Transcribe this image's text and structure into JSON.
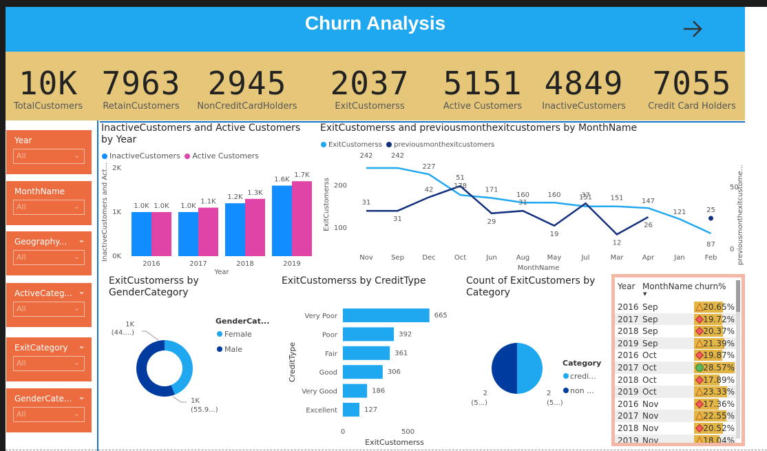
{
  "header": {
    "title": "Churn Analysis"
  },
  "kpis": [
    {
      "value": "10K",
      "label": "TotalCustomers"
    },
    {
      "value": "7963",
      "label": "RetainCustomers"
    },
    {
      "value": "2945",
      "label": "NonCreditCardHolders"
    },
    {
      "value": "2037",
      "label": "ExitCustomerss"
    },
    {
      "value": "5151",
      "label": "Active Customers"
    },
    {
      "value": "4849",
      "label": "InactiveCustomers"
    },
    {
      "value": "7055",
      "label": "Credit Card Holders"
    }
  ],
  "slicers": [
    {
      "title": "Year",
      "value": "All"
    },
    {
      "title": "MonthName",
      "value": "All"
    },
    {
      "title": "Geography...",
      "value": "All"
    },
    {
      "title": "ActiveCateg...",
      "value": "All"
    },
    {
      "title": "ExitCategory",
      "value": "All"
    },
    {
      "title": "GenderCate...",
      "value": "All"
    }
  ],
  "bar_chart": {
    "title": "InactiveCustomers and Active Customers by Year",
    "legend": [
      "InactiveCustomers",
      "Active Customers"
    ],
    "colors": [
      "#118dff",
      "#e044a7"
    ],
    "ylabel": "InactiveCustomers and Act...",
    "xlabel": "Year",
    "yticks": [
      "0K",
      "1K",
      "2K"
    ]
  },
  "line_chart": {
    "title": "ExitCustomerss and previousmonthexitcustomers by MonthName",
    "legend": [
      "ExitCustomerss",
      "previousmonthexitcustomers"
    ],
    "colors": [
      "#1fa7f0",
      "#13307f"
    ],
    "ylabel": "ExitCustomerss",
    "y2label": "previousmonthexitcustome...",
    "xlabel": "MonthName",
    "yticks": [
      "100",
      "200"
    ],
    "y2ticks": [
      "0",
      "50"
    ]
  },
  "donut_chart": {
    "title": "ExitCustomerss by GenderCategory",
    "legend_title": "GenderCat...",
    "legend": [
      "Female",
      "Male"
    ],
    "colors": [
      "#1fa7f0",
      "#003ba0"
    ],
    "label_top": "1K",
    "label_top_pct": "(44....)",
    "label_bottom": "1K",
    "label_bottom_pct": "(55.9...)"
  },
  "hbar_chart": {
    "title": "ExitCustomerss by CreditType",
    "ylabel": "CreditType",
    "xlabel": "ExitCustomerss",
    "xticks": [
      "0",
      "500"
    ],
    "color": "#1fa7f0"
  },
  "pie_chart": {
    "title": "Count of ExitCustomers by Category",
    "legend_title": "Category",
    "legend": [
      "credi...",
      "non ..."
    ],
    "colors": [
      "#1fa7f0",
      "#003ba0"
    ],
    "label_left": "2",
    "label_left_pct": "(5...)",
    "label_right": "2",
    "label_right_pct": "(5...)"
  },
  "table": {
    "headers": [
      "Year",
      "MonthName",
      "churn%"
    ],
    "rows": [
      {
        "year": "2016",
        "month": "Sep",
        "churn": "20.65%",
        "icon": "triangle",
        "fill": 0.72
      },
      {
        "year": "2017",
        "month": "Sep",
        "churn": "19.72%",
        "icon": "diamond",
        "fill": 0.69
      },
      {
        "year": "2018",
        "month": "Sep",
        "churn": "20.37%",
        "icon": "diamond",
        "fill": 0.71
      },
      {
        "year": "2019",
        "month": "Sep",
        "churn": "21.39%",
        "icon": "triangle",
        "fill": 0.75
      },
      {
        "year": "2016",
        "month": "Oct",
        "churn": "19.87%",
        "icon": "diamond",
        "fill": 0.7
      },
      {
        "year": "2017",
        "month": "Oct",
        "churn": "28.57%",
        "icon": "circle",
        "fill": 1.0
      },
      {
        "year": "2018",
        "month": "Oct",
        "churn": "17.89%",
        "icon": "diamond",
        "fill": 0.63
      },
      {
        "year": "2019",
        "month": "Oct",
        "churn": "23.33%",
        "icon": "triangle",
        "fill": 0.82
      },
      {
        "year": "2016",
        "month": "Nov",
        "churn": "17.36%",
        "icon": "diamond",
        "fill": 0.61
      },
      {
        "year": "2017",
        "month": "Nov",
        "churn": "22.55%",
        "icon": "triangle",
        "fill": 0.79
      },
      {
        "year": "2018",
        "month": "Nov",
        "churn": "20.52%",
        "icon": "diamond",
        "fill": 0.72
      },
      {
        "year": "2019",
        "month": "Nov",
        "churn": "18.04%",
        "icon": "triangle",
        "fill": 0.63
      }
    ]
  },
  "chart_data": [
    {
      "type": "bar",
      "title": "InactiveCustomers and Active Customers by Year",
      "categories": [
        "2016",
        "2017",
        "2018",
        "2019"
      ],
      "series": [
        {
          "name": "InactiveCustomers",
          "values": [
            1000,
            1000,
            1200,
            1600
          ]
        },
        {
          "name": "Active Customers",
          "values": [
            1000,
            1100,
            1300,
            1700
          ]
        }
      ],
      "data_labels": [
        [
          "1.0K",
          "1.0K",
          "1.2K",
          "1.6K"
        ],
        [
          "1.0K",
          "1.1K",
          "1.3K",
          "1.7K"
        ]
      ],
      "xlabel": "Year",
      "ylabel": "InactiveCustomers and Act...",
      "ylim": [
        0,
        2000
      ],
      "legend": "top-left"
    },
    {
      "type": "line",
      "title": "ExitCustomerss and previousmonthexitcustomers by MonthName",
      "categories": [
        "Nov",
        "Sep",
        "Dec",
        "Oct",
        "Jun",
        "Aug",
        "May",
        "Jul",
        "Mar",
        "Apr",
        "Jan",
        "Feb"
      ],
      "series": [
        {
          "name": "ExitCustomerss",
          "axis": "left",
          "values": [
            242,
            242,
            227,
            178,
            171,
            160,
            160,
            151,
            151,
            147,
            121,
            87
          ]
        },
        {
          "name": "previousmonthexitcustomers",
          "axis": "right",
          "values": [
            31,
            31,
            42,
            51,
            29,
            31,
            19,
            37,
            12,
            26,
            null,
            25
          ]
        }
      ],
      "xlabel": "MonthName",
      "ylabel": "ExitCustomerss",
      "y2label": "previousmonthexitcustome...",
      "ylim": [
        50,
        280
      ],
      "y2lim": [
        0,
        60
      ],
      "legend": "top-left"
    },
    {
      "type": "pie",
      "title": "ExitCustomerss by GenderCategory",
      "categories": [
        "Female",
        "Male"
      ],
      "values": [
        44,
        55.9
      ],
      "labels": [
        "1K (44....)",
        "1K (55.9...)"
      ]
    },
    {
      "type": "bar",
      "orientation": "horizontal",
      "title": "ExitCustomerss by CreditType",
      "categories": [
        "Very Poor",
        "Poor",
        "Fair",
        "Good",
        "Very Good",
        "Excellent"
      ],
      "values": [
        665,
        392,
        361,
        306,
        186,
        127
      ],
      "xlabel": "ExitCustomerss",
      "ylabel": "CreditType",
      "xlim": [
        0,
        750
      ]
    },
    {
      "type": "pie",
      "title": "Count of ExitCustomers by Category",
      "categories": [
        "credi...",
        "non ..."
      ],
      "values": [
        50,
        50
      ],
      "labels": [
        "2 (5...)",
        "2 (5...)"
      ]
    }
  ]
}
